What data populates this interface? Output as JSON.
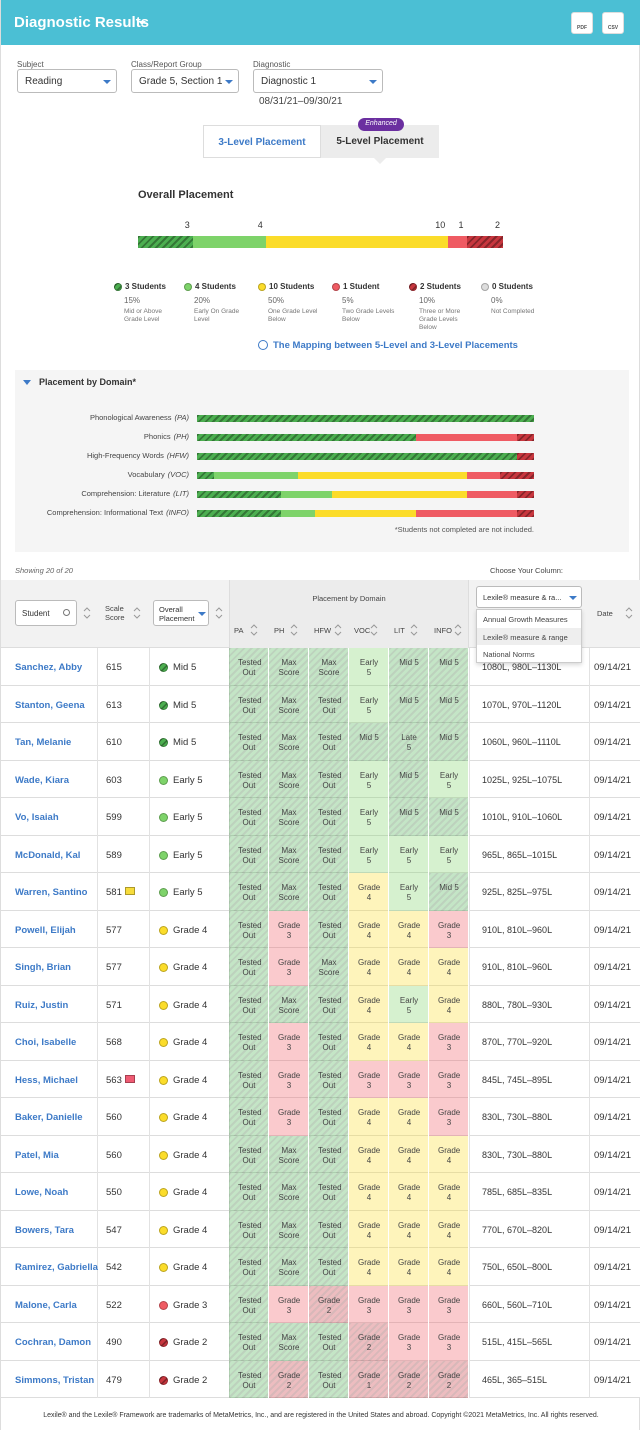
{
  "header": {
    "title": "Diagnostic Results",
    "icons": [
      "PDF",
      "CSV"
    ]
  },
  "filters": [
    {
      "label": "Subject",
      "value": "Reading"
    },
    {
      "label": "Class/Report Group",
      "value": "Grade 5, Section 1"
    },
    {
      "label": "Diagnostic",
      "value": "Diagnostic 1"
    }
  ],
  "date_range": "08/31/21–09/30/21",
  "tabs": [
    "3-Level Placement",
    "5-Level Placement"
  ],
  "badge": "Enhanced",
  "overall": {
    "title": "Overall Placement",
    "levels": [
      {
        "count": 3,
        "count_label": "3 Students",
        "percent": "15%",
        "description": "Mid or Above Grade Level",
        "color": "#4caf50",
        "hatched": true
      },
      {
        "count": 4,
        "count_label": "4 Students",
        "percent": "20%",
        "description": "Early On Grade Level",
        "color": "#7ed36a",
        "hatched": false
      },
      {
        "count": 10,
        "count_label": "10 Students",
        "percent": "50%",
        "description": "One Grade Level Below",
        "color": "#fbdc2a",
        "hatched": false
      },
      {
        "count": 1,
        "count_label": "1 Student",
        "percent": "5%",
        "description": "Two Grade Levels Below",
        "color": "#ef5b63",
        "hatched": false
      },
      {
        "count": 2,
        "count_label": "2 Students",
        "percent": "10%",
        "description": "Three or More Grade Levels Below",
        "color": "#c8363e",
        "hatched": true
      },
      {
        "count": 0,
        "count_label": "0 Students",
        "percent": "0%",
        "description": "Not Completed",
        "color": "#dddddd",
        "hatched": false
      }
    ]
  },
  "mapping_link": "The Mapping between 5-Level and 3-Level Placements",
  "domain_chart": {
    "title": "Placement by Domain*",
    "rows": [
      {
        "label": "Phonological Awareness",
        "abbr": "(PA)",
        "values": [
          100,
          0,
          0,
          0,
          0
        ]
      },
      {
        "label": "Phonics",
        "abbr": "(PH)",
        "values": [
          65,
          0,
          0,
          30,
          5
        ]
      },
      {
        "label": "High-Frequency Words",
        "abbr": "(HFW)",
        "values": [
          95,
          0,
          0,
          0,
          5
        ]
      },
      {
        "label": "Vocabulary",
        "abbr": "(VOC)",
        "values": [
          5,
          25,
          50,
          10,
          10
        ]
      },
      {
        "label": "Comprehension: Literature",
        "abbr": "(LIT)",
        "values": [
          25,
          15,
          40,
          15,
          5
        ]
      },
      {
        "label": "Comprehension: Informational Text",
        "abbr": "(INFO)",
        "values": [
          25,
          10,
          30,
          30,
          5
        ]
      }
    ],
    "note": "*Students not completed are not included."
  },
  "table": {
    "showing": "Showing 20 of 20",
    "choose": "Choose Your Column:",
    "headers": {
      "student": "Student",
      "score": "Scale Score",
      "placement": "Overall Placement",
      "domain": "Placement by Domain",
      "domains": [
        "PA",
        "PH",
        "HFW",
        "VOC",
        "LIT",
        "INFO"
      ],
      "column_select": "Lexile® measure & ra...",
      "date": "Date"
    },
    "column_options": [
      "Annual Growth Measures",
      "Lexile® measure & range",
      "National Norms"
    ],
    "rows": [
      {
        "name": "Sanchez, Abby",
        "score": 615,
        "placement": "Mid 5",
        "placement_color": "#4caf50",
        "domain": [
          "Tested Out",
          "Max Score",
          "Max Score",
          "Early 5",
          "Mid 5",
          "Mid 5"
        ],
        "domain_colors": [
          "#4caf50",
          "#4caf50",
          "#4caf50",
          "#7ed36a",
          "#4caf50",
          "#4caf50"
        ],
        "lexile": "1080L, 980L–1130L",
        "date": "09/14/21"
      },
      {
        "name": "Stanton, Geena",
        "score": 613,
        "placement": "Mid 5",
        "placement_color": "#4caf50",
        "domain": [
          "Tested Out",
          "Max Score",
          "Tested Out",
          "Early 5",
          "Mid 5",
          "Mid 5"
        ],
        "domain_colors": [
          "#4caf50",
          "#4caf50",
          "#4caf50",
          "#7ed36a",
          "#4caf50",
          "#4caf50"
        ],
        "lexile": "1070L, 970L–1120L",
        "date": "09/14/21"
      },
      {
        "name": "Tan, Melanie",
        "score": 610,
        "placement": "Mid 5",
        "placement_color": "#4caf50",
        "domain": [
          "Tested Out",
          "Max Score",
          "Tested Out",
          "Mid 5",
          "Late 5",
          "Mid 5"
        ],
        "domain_colors": [
          "#4caf50",
          "#4caf50",
          "#4caf50",
          "#4caf50",
          "#4caf50",
          "#4caf50"
        ],
        "lexile": "1060L, 960L–1110L",
        "date": "09/14/21"
      },
      {
        "name": "Wade, Kiara",
        "score": 603,
        "placement": "Early 5",
        "placement_color": "#7ed36a",
        "domain": [
          "Tested Out",
          "Max Score",
          "Tested Out",
          "Early 5",
          "Mid 5",
          "Early 5"
        ],
        "domain_colors": [
          "#4caf50",
          "#4caf50",
          "#4caf50",
          "#7ed36a",
          "#4caf50",
          "#7ed36a"
        ],
        "lexile": "1025L, 925L–1075L",
        "date": "09/14/21"
      },
      {
        "name": "Vo, Isaiah",
        "score": 599,
        "placement": "Early 5",
        "placement_color": "#7ed36a",
        "domain": [
          "Tested Out",
          "Max Score",
          "Tested Out",
          "Early 5",
          "Mid 5",
          "Mid 5"
        ],
        "domain_colors": [
          "#4caf50",
          "#4caf50",
          "#4caf50",
          "#7ed36a",
          "#4caf50",
          "#4caf50"
        ],
        "lexile": "1010L, 910L–1060L",
        "date": "09/14/21"
      },
      {
        "name": "McDonald, Kal",
        "score": 589,
        "placement": "Early 5",
        "placement_color": "#7ed36a",
        "domain": [
          "Tested Out",
          "Max Score",
          "Tested Out",
          "Early 5",
          "Early 5",
          "Early 5"
        ],
        "domain_colors": [
          "#4caf50",
          "#4caf50",
          "#4caf50",
          "#7ed36a",
          "#7ed36a",
          "#7ed36a"
        ],
        "lexile": "965L, 865L–1015L",
        "date": "09/14/21"
      },
      {
        "name": "Warren, Santino",
        "score": 581,
        "flag_color": "#f7dc3c",
        "placement": "Early 5",
        "placement_color": "#7ed36a",
        "domain": [
          "Tested Out",
          "Max Score",
          "Tested Out",
          "Grade 4",
          "Early 5",
          "Mid 5"
        ],
        "domain_colors": [
          "#4caf50",
          "#4caf50",
          "#4caf50",
          "#fbdc2a",
          "#7ed36a",
          "#4caf50"
        ],
        "lexile": "925L, 825L–975L",
        "date": "09/14/21"
      },
      {
        "name": "Powell, Elijah",
        "score": 577,
        "placement": "Grade 4",
        "placement_color": "#fbdc2a",
        "domain": [
          "Tested Out",
          "Grade 3",
          "Tested Out",
          "Grade 4",
          "Grade 4",
          "Grade 3"
        ],
        "domain_colors": [
          "#4caf50",
          "#ef5b63",
          "#4caf50",
          "#fbdc2a",
          "#fbdc2a",
          "#ef5b63"
        ],
        "lexile": "910L, 810L–960L",
        "date": "09/14/21"
      },
      {
        "name": "Singh, Brian",
        "score": 577,
        "placement": "Grade 4",
        "placement_color": "#fbdc2a",
        "domain": [
          "Tested Out",
          "Grade 3",
          "Max Score",
          "Grade 4",
          "Grade 4",
          "Grade 4"
        ],
        "domain_colors": [
          "#4caf50",
          "#ef5b63",
          "#4caf50",
          "#fbdc2a",
          "#fbdc2a",
          "#fbdc2a"
        ],
        "lexile": "910L, 810L–960L",
        "date": "09/14/21"
      },
      {
        "name": "Ruiz, Justin",
        "score": 571,
        "placement": "Grade 4",
        "placement_color": "#fbdc2a",
        "domain": [
          "Tested Out",
          "Max Score",
          "Tested Out",
          "Grade 4",
          "Early 5",
          "Grade 4"
        ],
        "domain_colors": [
          "#4caf50",
          "#4caf50",
          "#4caf50",
          "#fbdc2a",
          "#7ed36a",
          "#fbdc2a"
        ],
        "lexile": "880L, 780L–930L",
        "date": "09/14/21"
      },
      {
        "name": "Choi, Isabelle",
        "score": 568,
        "placement": "Grade 4",
        "placement_color": "#fbdc2a",
        "domain": [
          "Tested Out",
          "Grade 3",
          "Tested Out",
          "Grade 4",
          "Grade 4",
          "Grade 3"
        ],
        "domain_colors": [
          "#4caf50",
          "#ef5b63",
          "#4caf50",
          "#fbdc2a",
          "#fbdc2a",
          "#ef5b63"
        ],
        "lexile": "870L, 770L–920L",
        "date": "09/14/21"
      },
      {
        "name": "Hess, Michael",
        "score": 563,
        "flag_color": "#ef5b73",
        "placement": "Grade 4",
        "placement_color": "#fbdc2a",
        "domain": [
          "Tested Out",
          "Grade 3",
          "Tested Out",
          "Grade 3",
          "Grade 3",
          "Grade 3"
        ],
        "domain_colors": [
          "#4caf50",
          "#ef5b63",
          "#4caf50",
          "#ef5b63",
          "#ef5b63",
          "#ef5b63"
        ],
        "lexile": "845L, 745L–895L",
        "date": "09/14/21"
      },
      {
        "name": "Baker, Danielle",
        "score": 560,
        "placement": "Grade 4",
        "placement_color": "#fbdc2a",
        "domain": [
          "Tested Out",
          "Grade 3",
          "Tested Out",
          "Grade 4",
          "Grade 4",
          "Grade 3"
        ],
        "domain_colors": [
          "#4caf50",
          "#ef5b63",
          "#4caf50",
          "#fbdc2a",
          "#fbdc2a",
          "#ef5b63"
        ],
        "lexile": "830L, 730L–880L",
        "date": "09/14/21"
      },
      {
        "name": "Patel, Mia",
        "score": 560,
        "placement": "Grade 4",
        "placement_color": "#fbdc2a",
        "domain": [
          "Tested Out",
          "Max Score",
          "Tested Out",
          "Grade 4",
          "Grade 4",
          "Grade 4"
        ],
        "domain_colors": [
          "#4caf50",
          "#4caf50",
          "#4caf50",
          "#fbdc2a",
          "#fbdc2a",
          "#fbdc2a"
        ],
        "lexile": "830L, 730L–880L",
        "date": "09/14/21"
      },
      {
        "name": "Lowe, Noah",
        "score": 550,
        "placement": "Grade 4",
        "placement_color": "#fbdc2a",
        "domain": [
          "Tested Out",
          "Max Score",
          "Tested Out",
          "Grade 4",
          "Grade 4",
          "Grade 4"
        ],
        "domain_colors": [
          "#4caf50",
          "#4caf50",
          "#4caf50",
          "#fbdc2a",
          "#fbdc2a",
          "#fbdc2a"
        ],
        "lexile": "785L, 685L–835L",
        "date": "09/14/21"
      },
      {
        "name": "Bowers, Tara",
        "score": 547,
        "placement": "Grade 4",
        "placement_color": "#fbdc2a",
        "domain": [
          "Tested Out",
          "Max Score",
          "Tested Out",
          "Grade 4",
          "Grade 4",
          "Grade 4"
        ],
        "domain_colors": [
          "#4caf50",
          "#4caf50",
          "#4caf50",
          "#fbdc2a",
          "#fbdc2a",
          "#fbdc2a"
        ],
        "lexile": "770L, 670L–820L",
        "date": "09/14/21"
      },
      {
        "name": "Ramirez, Gabriella",
        "score": 542,
        "placement": "Grade 4",
        "placement_color": "#fbdc2a",
        "domain": [
          "Tested Out",
          "Max Score",
          "Tested Out",
          "Grade 4",
          "Grade 4",
          "Grade 4"
        ],
        "domain_colors": [
          "#4caf50",
          "#4caf50",
          "#4caf50",
          "#fbdc2a",
          "#fbdc2a",
          "#fbdc2a"
        ],
        "lexile": "750L, 650L–800L",
        "date": "09/14/21"
      },
      {
        "name": "Malone, Carla",
        "score": 522,
        "placement": "Grade 3",
        "placement_color": "#ef5b63",
        "domain": [
          "Tested Out",
          "Grade 3",
          "Grade 2",
          "Grade 3",
          "Grade 3",
          "Grade 3"
        ],
        "domain_colors": [
          "#4caf50",
          "#ef5b63",
          "#c8363e",
          "#ef5b63",
          "#ef5b63",
          "#ef5b63"
        ],
        "lexile": "660L, 560L–710L",
        "date": "09/14/21"
      },
      {
        "name": "Cochran, Damon",
        "score": 490,
        "placement": "Grade 2",
        "placement_color": "#c8363e",
        "domain": [
          "Tested Out",
          "Max Score",
          "Tested Out",
          "Grade 2",
          "Grade 3",
          "Grade 3"
        ],
        "domain_colors": [
          "#4caf50",
          "#4caf50",
          "#4caf50",
          "#c8363e",
          "#ef5b63",
          "#ef5b63"
        ],
        "lexile": "515L, 415L–565L",
        "date": "09/14/21"
      },
      {
        "name": "Simmons, Tristan",
        "score": 479,
        "placement": "Grade 2",
        "placement_color": "#c8363e",
        "domain": [
          "Tested Out",
          "Grade 2",
          "Tested Out",
          "Grade 1",
          "Grade 2",
          "Grade 2"
        ],
        "domain_colors": [
          "#4caf50",
          "#c8363e",
          "#4caf50",
          "#c8363e",
          "#c8363e",
          "#c8363e"
        ],
        "lexile": "465L, 365–515L",
        "date": "09/14/21"
      }
    ]
  },
  "footer": "Lexile® and the Lexile® Framework are trademarks of MetaMetrics, Inc., and are registered in the United States and abroad. Copyright ©2021 MetaMetrics, Inc. All rights reserved."
}
